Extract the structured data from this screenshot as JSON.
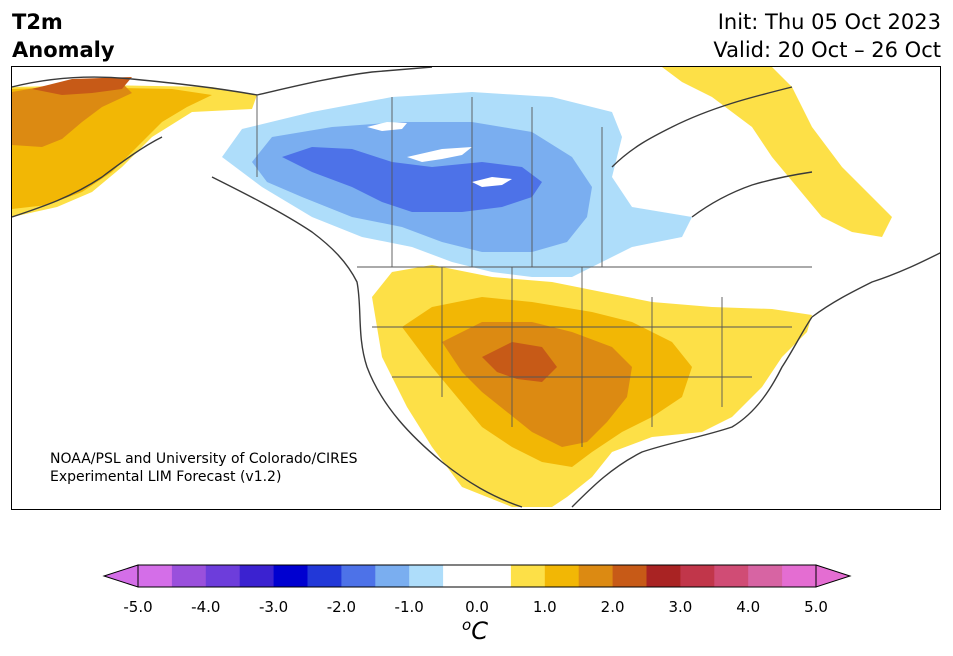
{
  "header": {
    "title_line1": "T2m",
    "title_line2": "Anomaly",
    "init": "Init: Thu 05 Oct 2023",
    "valid": "Valid: 20 Oct – 26 Oct"
  },
  "credit": {
    "line1": "NOAA/PSL and University of Colorado/CIRES",
    "line2": "Experimental LIM Forecast (v1.2)"
  },
  "colorbar": {
    "colors": [
      "#d46ee8",
      "#9a50dc",
      "#6d3ddb",
      "#3b22d0",
      "#0000d0",
      "#2238d8",
      "#4d72e8",
      "#7aaef0",
      "#aeddfa",
      "#ffffff",
      "#ffffff",
      "#fde047",
      "#f2b705",
      "#dc8a12",
      "#c75a17",
      "#a92323",
      "#c1364a",
      "#d04c75",
      "#d764a3",
      "#e46dd2"
    ],
    "tick_labels": [
      "-5.0",
      "-4.0",
      "-3.0",
      "-2.0",
      "-1.0",
      "0.0",
      "1.0",
      "2.0",
      "3.0",
      "4.0",
      "5.0"
    ],
    "unit_base": "o",
    "unit_symbol": "C"
  },
  "legend_colors": {
    "cold1": "#aeddfa",
    "cold2": "#7aaef0",
    "cold3": "#4d72e8",
    "warm1": "#fde047",
    "warm2": "#f2b705",
    "warm3": "#dc8a12",
    "warm4": "#c75a17"
  }
}
